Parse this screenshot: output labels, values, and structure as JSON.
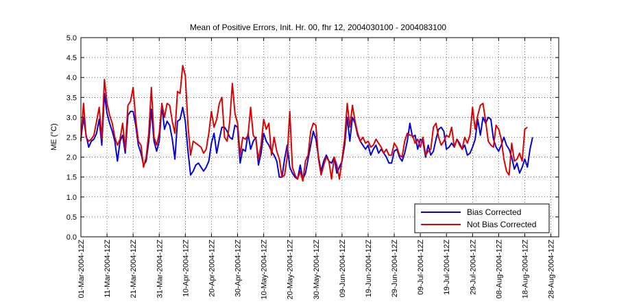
{
  "chart_data": {
    "type": "line",
    "title": "Mean of Positive Errors, Init. Hr. 00, fhr 12, 2004030100 - 2004083100",
    "xlabel": "",
    "ylabel": "ME (°C)",
    "ylim": [
      0,
      5
    ],
    "xlim": [
      0,
      183
    ],
    "yticks": [
      0.0,
      0.5,
      1.0,
      1.5,
      2.0,
      2.5,
      3.0,
      3.5,
      4.0,
      4.5,
      5.0
    ],
    "ytick_labels": [
      "0.0",
      "0.5",
      "1.0",
      "1.5",
      "2.0",
      "2.5",
      "3.0",
      "3.5",
      "4.0",
      "4.5",
      "5.0"
    ],
    "xticks": [
      0,
      10,
      20,
      30,
      40,
      50,
      60,
      70,
      80,
      90,
      100,
      110,
      120,
      130,
      140,
      150,
      160,
      170,
      180
    ],
    "xtick_labels": [
      "01-Mar-2004-12Z",
      "11-Mar-2004-12Z",
      "21-Mar-2004-12Z",
      "31-Mar-2004-12Z",
      "10-Apr-2004-12Z",
      "20-Apr-2004-12Z",
      "30-Apr-2004-12Z",
      "10-May-2004-12Z",
      "20-May-2004-12Z",
      "30-May-2004-12Z",
      "09-Jun-2004-12Z",
      "19-Jun-2004-12Z",
      "29-Jun-2004-12Z",
      "09-Jul-2004-12Z",
      "19-Jul-2004-12Z",
      "29-Jul-2004-12Z",
      "08-Aug-2004-12Z",
      "18-Aug-2004-12Z",
      "28-Aug-2004-12Z"
    ],
    "grid": true,
    "legend_position": "bottom-right",
    "x_start_label": "01-Mar-2004-12Z",
    "x_step": "1 day",
    "series": [
      {
        "name": "Bias Corrected",
        "color": "#0000dd",
        "values": [
          2.45,
          3.0,
          2.55,
          2.25,
          2.4,
          2.45,
          2.6,
          2.95,
          2.3,
          3.6,
          3.1,
          2.85,
          2.65,
          2.4,
          1.9,
          2.4,
          2.55,
          2.1,
          3.05,
          3.15,
          3.15,
          2.8,
          2.3,
          2.1,
          1.8,
          1.9,
          2.4,
          3.2,
          2.4,
          2.15,
          2.4,
          3.3,
          2.7,
          2.9,
          2.8,
          2.45,
          1.95,
          2.9,
          2.95,
          3.25,
          2.9,
          2.15,
          1.55,
          1.65,
          1.8,
          1.85,
          1.75,
          1.65,
          1.75,
          1.9,
          2.35,
          2.6,
          2.1,
          2.45,
          2.75,
          2.75,
          2.65,
          2.5,
          2.45,
          2.8,
          2.75,
          1.85,
          2.2,
          2.15,
          2.6,
          2.2,
          2.4,
          2.5,
          1.8,
          2.1,
          2.6,
          2.4,
          2.3,
          2.15,
          2.05,
          1.9,
          1.5,
          1.5,
          1.95,
          2.3,
          1.75,
          1.6,
          1.5,
          1.45,
          1.8,
          1.45,
          1.6,
          1.95,
          2.3,
          2.65,
          2.45,
          2.0,
          1.65,
          1.9,
          2.05,
          1.9,
          1.85,
          2.0,
          1.6,
          1.75,
          1.9,
          2.3,
          3.0,
          2.4,
          3.0,
          2.85,
          2.55,
          2.4,
          2.3,
          2.2,
          2.3,
          2.05,
          2.2,
          2.3,
          2.1,
          2.2,
          2.1,
          2.0,
          1.85,
          1.85,
          2.15,
          2.2,
          2.0,
          1.9,
          2.1,
          2.4,
          2.85,
          2.5,
          2.55,
          2.2,
          2.45,
          2.4,
          2.0,
          2.3,
          2.05,
          2.15,
          2.45,
          2.7,
          2.75,
          2.65,
          2.2,
          2.25,
          2.35,
          2.25,
          2.45,
          2.35,
          2.2,
          2.3,
          2.05,
          2.1,
          2.25,
          2.45,
          2.95,
          2.55,
          3.0,
          2.85,
          3.0,
          2.95,
          2.45,
          2.25,
          2.15,
          2.3,
          2.5,
          2.3,
          2.2,
          2.0,
          1.7,
          1.85,
          1.6,
          1.75,
          1.95,
          1.75,
          2.2,
          2.5
        ]
      },
      {
        "name": "Not Bias Corrected",
        "color": "#dd0000",
        "values": [
          2.4,
          3.35,
          2.5,
          2.4,
          2.45,
          2.55,
          2.9,
          3.25,
          2.45,
          3.95,
          3.35,
          3.05,
          2.85,
          2.5,
          2.3,
          2.45,
          2.85,
          2.2,
          3.3,
          3.4,
          3.75,
          2.95,
          2.4,
          2.3,
          1.75,
          2.0,
          2.6,
          3.75,
          2.5,
          2.3,
          2.6,
          3.35,
          3.0,
          3.35,
          3.3,
          2.9,
          2.6,
          3.65,
          3.6,
          4.3,
          4.05,
          2.8,
          2.05,
          2.4,
          2.35,
          2.3,
          2.25,
          2.1,
          2.2,
          2.6,
          3.15,
          2.75,
          2.95,
          3.35,
          3.5,
          2.5,
          2.4,
          2.9,
          3.85,
          3.1,
          2.85,
          2.05,
          2.5,
          2.45,
          2.55,
          3.25,
          2.55,
          2.45,
          1.95,
          2.3,
          2.95,
          2.7,
          2.85,
          2.05,
          2.5,
          2.15,
          1.95,
          1.5,
          1.55,
          2.0,
          3.15,
          1.75,
          1.55,
          1.45,
          1.65,
          1.4,
          1.9,
          2.05,
          2.65,
          2.85,
          2.8,
          1.95,
          1.55,
          1.8,
          2.0,
          1.9,
          1.45,
          2.0,
          1.8,
          1.45,
          1.95,
          2.45,
          3.35,
          2.75,
          3.3,
          2.9,
          2.6,
          2.4,
          2.5,
          2.35,
          2.4,
          2.25,
          2.3,
          2.45,
          2.35,
          2.25,
          2.1,
          2.2,
          2.05,
          2.05,
          2.35,
          2.25,
          2.05,
          2.0,
          2.4,
          2.6,
          2.55,
          2.55,
          2.35,
          2.45,
          2.25,
          2.5,
          2.05,
          2.15,
          2.2,
          2.75,
          2.85,
          2.5,
          2.3,
          2.4,
          2.55,
          2.5,
          2.75,
          2.25,
          2.45,
          2.3,
          2.2,
          2.5,
          2.35,
          2.55,
          3.25,
          2.7,
          3.05,
          3.3,
          3.35,
          2.9,
          2.4,
          2.3,
          2.25,
          2.8,
          2.7,
          2.45,
          1.95,
          1.65,
          1.55,
          2.35,
          1.9,
          1.95,
          2.1,
          1.9,
          2.7,
          2.75
        ]
      }
    ]
  },
  "legend": {
    "items": [
      {
        "label": "Bias Corrected",
        "color": "#0000dd"
      },
      {
        "label": "Not Bias Corrected",
        "color": "#dd0000"
      }
    ]
  }
}
